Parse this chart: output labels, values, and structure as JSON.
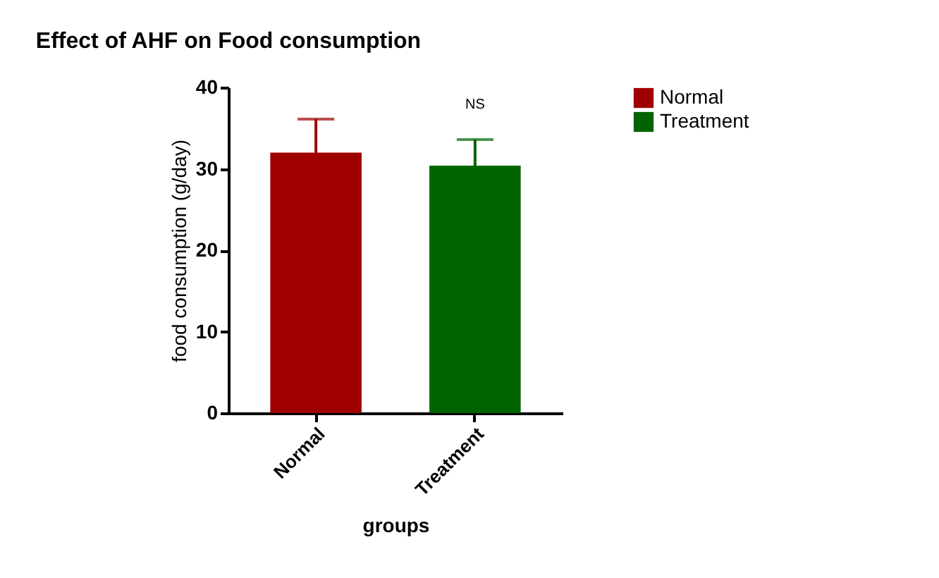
{
  "chart_data": {
    "type": "bar",
    "title": "Effect of AHF on Food consumption",
    "xlabel": "groups",
    "ylabel": "food consumption (g/day)",
    "categories": [
      "Normal",
      "Treatment"
    ],
    "series": [
      {
        "name": "Normal",
        "color": "#a00000",
        "values": [
          32.0,
          null
        ],
        "errors": [
          4.1,
          null
        ]
      },
      {
        "name": "Treatment",
        "color": "#006400",
        "values": [
          null,
          30.4
        ],
        "errors": [
          null,
          3.2
        ]
      }
    ],
    "ylim": [
      0,
      40
    ],
    "yticks": [
      0,
      10,
      20,
      30,
      40
    ],
    "grid": false,
    "legend": "top right",
    "annotations": [
      "NS"
    ]
  }
}
